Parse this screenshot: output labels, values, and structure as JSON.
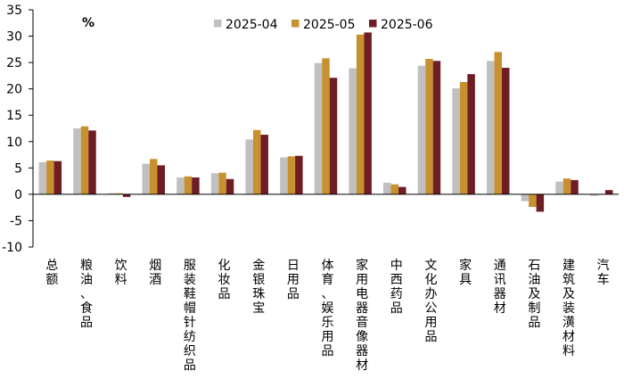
{
  "chart_data": {
    "type": "bar",
    "unit_label": "%",
    "categories": [
      "总额",
      "粮油、食品",
      "饮料",
      "烟酒",
      "服装鞋帽针纺织品",
      "化妆品",
      "金银珠宝",
      "日用品",
      "体育、娱乐用品",
      "家用电器音像器材",
      "中西药品",
      "文化办公用品",
      "家具",
      "通讯器材",
      "石油及制品",
      "建筑及装潢材料",
      "汽车"
    ],
    "series": [
      {
        "name": "2025-04",
        "color": "#c0c0c0",
        "values": [
          6.1,
          12.5,
          0.2,
          5.8,
          3.2,
          4.0,
          10.4,
          7.0,
          24.9,
          23.9,
          2.2,
          24.4,
          20.1,
          25.3,
          -1.3,
          2.4,
          -0.3
        ]
      },
      {
        "name": "2025-05",
        "color": "#c8912f",
        "values": [
          6.4,
          12.9,
          0.2,
          6.7,
          3.4,
          4.1,
          12.2,
          7.2,
          25.8,
          30.3,
          1.9,
          25.7,
          21.3,
          27.0,
          -2.4,
          3.0,
          0.0
        ]
      },
      {
        "name": "2025-06",
        "color": "#6e1d24",
        "values": [
          6.3,
          12.1,
          -0.5,
          5.5,
          3.2,
          2.9,
          11.3,
          7.3,
          22.1,
          30.7,
          1.4,
          25.3,
          22.8,
          24.0,
          -3.3,
          2.7,
          0.8
        ]
      }
    ],
    "yticks": [
      -10,
      -5,
      0,
      5,
      10,
      15,
      20,
      25,
      30,
      35
    ],
    "ylim": [
      -10,
      35
    ],
    "legend_position": "top",
    "grid": false
  }
}
